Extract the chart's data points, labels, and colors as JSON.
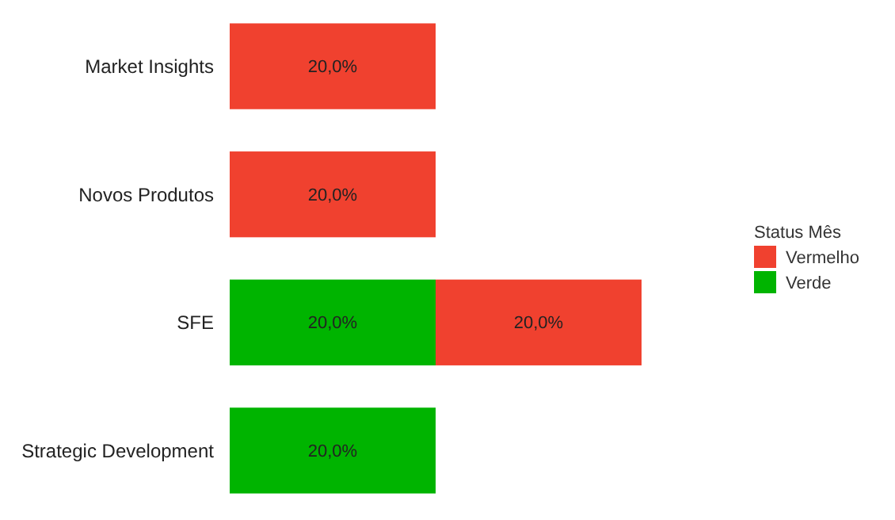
{
  "chart_data": {
    "type": "bar",
    "orientation": "horizontal",
    "stacked": true,
    "legend_title": "Status Mês",
    "legend": "right",
    "categories": [
      "Market Insights",
      "Novos Produtos",
      "SFE",
      "Strategic Development"
    ],
    "series": [
      {
        "name": "Verde",
        "color": "#00b400",
        "values": [
          null,
          null,
          20,
          20
        ],
        "value_labels": [
          null,
          null,
          "20,0%",
          "20,0%"
        ]
      },
      {
        "name": "Vermelho",
        "color": "#f0412f",
        "values": [
          20,
          20,
          20,
          null
        ],
        "value_labels": [
          "20,0%",
          "20,0%",
          "20,0%",
          null
        ]
      }
    ]
  }
}
